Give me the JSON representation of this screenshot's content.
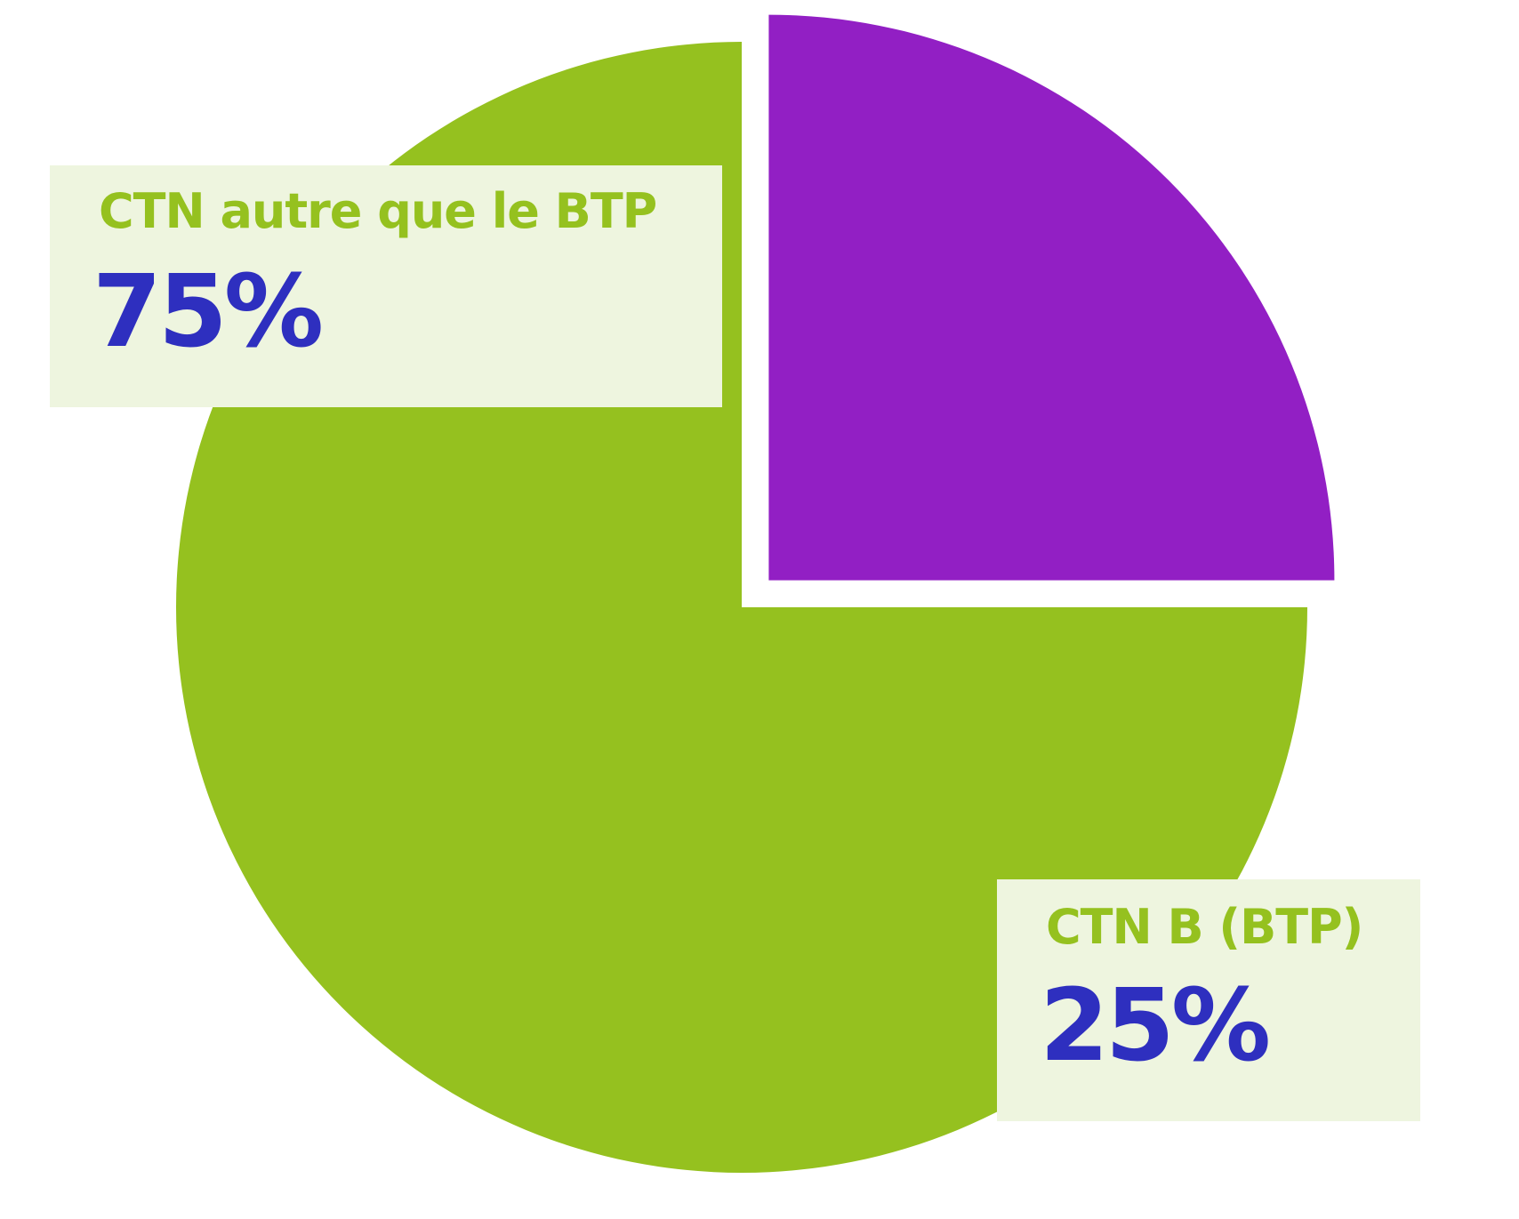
{
  "chart_data": {
    "type": "pie",
    "title": "",
    "slices": [
      {
        "label": "CTN autre que le BTP",
        "value": 75,
        "display": "75%",
        "color": "#95c11f"
      },
      {
        "label": "CTN B (BTP)",
        "value": 25,
        "display": "25%",
        "color": "#921fc4"
      }
    ],
    "exploded_slice": "CTN B (BTP)",
    "colors": {
      "label_name": "#95c11f",
      "label_value": "#2e2fbf",
      "label_background": "#eef5df"
    }
  }
}
